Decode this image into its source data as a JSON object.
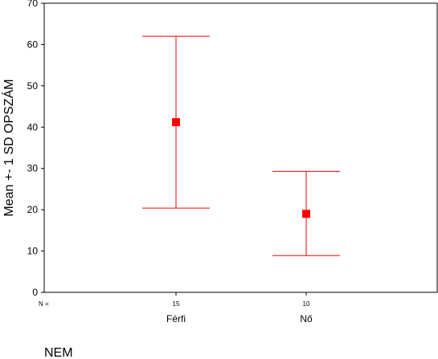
{
  "chart_data": {
    "type": "errorbar",
    "ylabel": "Mean +- 1 SD OPSZÁM",
    "xlabel": "NEM",
    "ylim": [
      0,
      70
    ],
    "yticks": [
      0,
      10,
      20,
      30,
      40,
      50,
      60,
      70
    ],
    "n_prefix": "N =",
    "categories": [
      "Férfi",
      "Nő"
    ],
    "n": [
      "15",
      "10"
    ],
    "mean": [
      41.2,
      19.0
    ],
    "upper": [
      62.0,
      29.3
    ],
    "lower": [
      20.4,
      8.9
    ],
    "color": "#ff0000",
    "grid": false,
    "legend": "none"
  }
}
